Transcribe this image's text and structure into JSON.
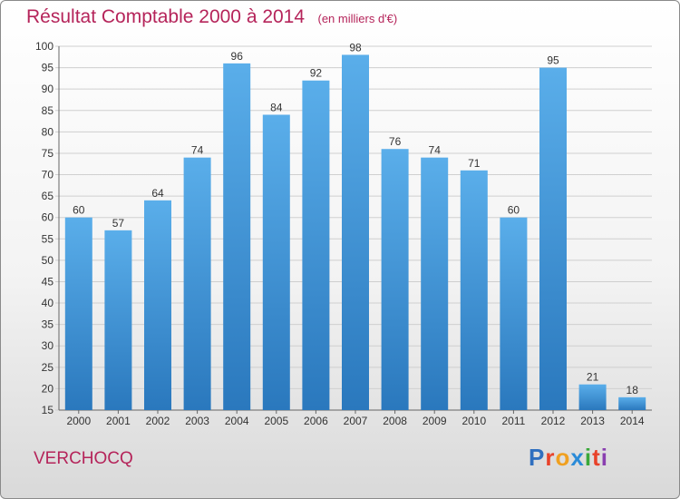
{
  "header": {
    "title": "Résultat Comptable 2000 à 2014",
    "subtitle": "(en milliers d'€)"
  },
  "footer": {
    "town": "VERCHOCQ",
    "logo_text": "Proxiti",
    "logo_colors": [
      "#2f6fbf",
      "#e8422a",
      "#f0a020",
      "#2a8bd8",
      "#3aa83a",
      "#e8422a",
      "#8a3fb0"
    ]
  },
  "colors": {
    "bar_light": "#5aaeea",
    "bar_dark": "#2a78bd",
    "grid": "#cfcfcf",
    "title": "#b5245a"
  },
  "chart_data": {
    "type": "bar",
    "title": "Résultat Comptable 2000 à 2014",
    "subtitle": "(en milliers d'€)",
    "categories": [
      "2000",
      "2001",
      "2002",
      "2003",
      "2004",
      "2005",
      "2006",
      "2007",
      "2008",
      "2009",
      "2010",
      "2011",
      "2012",
      "2013",
      "2014"
    ],
    "values": [
      60,
      57,
      64,
      74,
      96,
      84,
      92,
      98,
      76,
      74,
      71,
      60,
      95,
      21,
      18
    ],
    "ylim": [
      15,
      100
    ],
    "yticks": [
      15,
      20,
      25,
      30,
      35,
      40,
      45,
      50,
      55,
      60,
      65,
      70,
      75,
      80,
      85,
      90,
      95,
      100
    ],
    "grid": true
  }
}
